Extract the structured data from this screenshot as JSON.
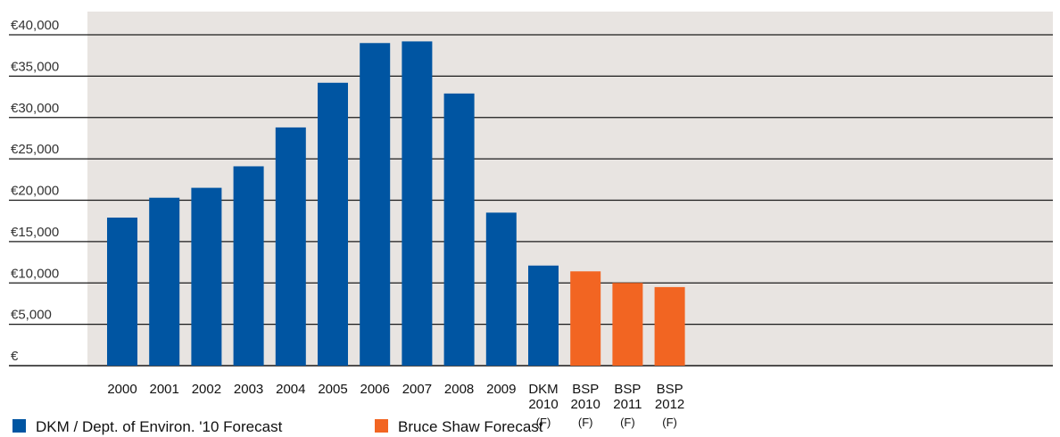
{
  "chart_data": {
    "type": "bar",
    "categories": [
      [
        "2000"
      ],
      [
        "2001"
      ],
      [
        "2002"
      ],
      [
        "2003"
      ],
      [
        "2004"
      ],
      [
        "2005"
      ],
      [
        "2006"
      ],
      [
        "2007"
      ],
      [
        "2008"
      ],
      [
        "2009"
      ],
      [
        "DKM",
        "2010",
        "(F)"
      ],
      [
        "BSP",
        "2010",
        "(F)"
      ],
      [
        "BSP",
        "2011",
        "(F)"
      ],
      [
        "BSP",
        "2012",
        "(F)"
      ]
    ],
    "series": [
      {
        "name": "DKM / Dept. of Environ. '10 Forecast",
        "color": "#0055a2",
        "values": [
          17900,
          20300,
          21500,
          24100,
          28800,
          34200,
          39000,
          39200,
          32900,
          18500,
          12100,
          null,
          null,
          null
        ]
      },
      {
        "name": "Bruce Shaw Forecast",
        "color": "#f26522",
        "values": [
          null,
          null,
          null,
          null,
          null,
          null,
          null,
          null,
          null,
          null,
          null,
          11400,
          10000,
          9500
        ]
      }
    ],
    "y_ticks": [
      "€",
      "€5,000",
      "€10,000",
      "€15,000",
      "€20,000",
      "€25,000",
      "€30,000",
      "€35,000",
      "€40,000"
    ],
    "ylim": [
      0,
      40000
    ],
    "title": "",
    "xlabel": "",
    "ylabel": "",
    "grid": true,
    "legend_position": "bottom-left",
    "plot_background": "#e8e4e1"
  }
}
